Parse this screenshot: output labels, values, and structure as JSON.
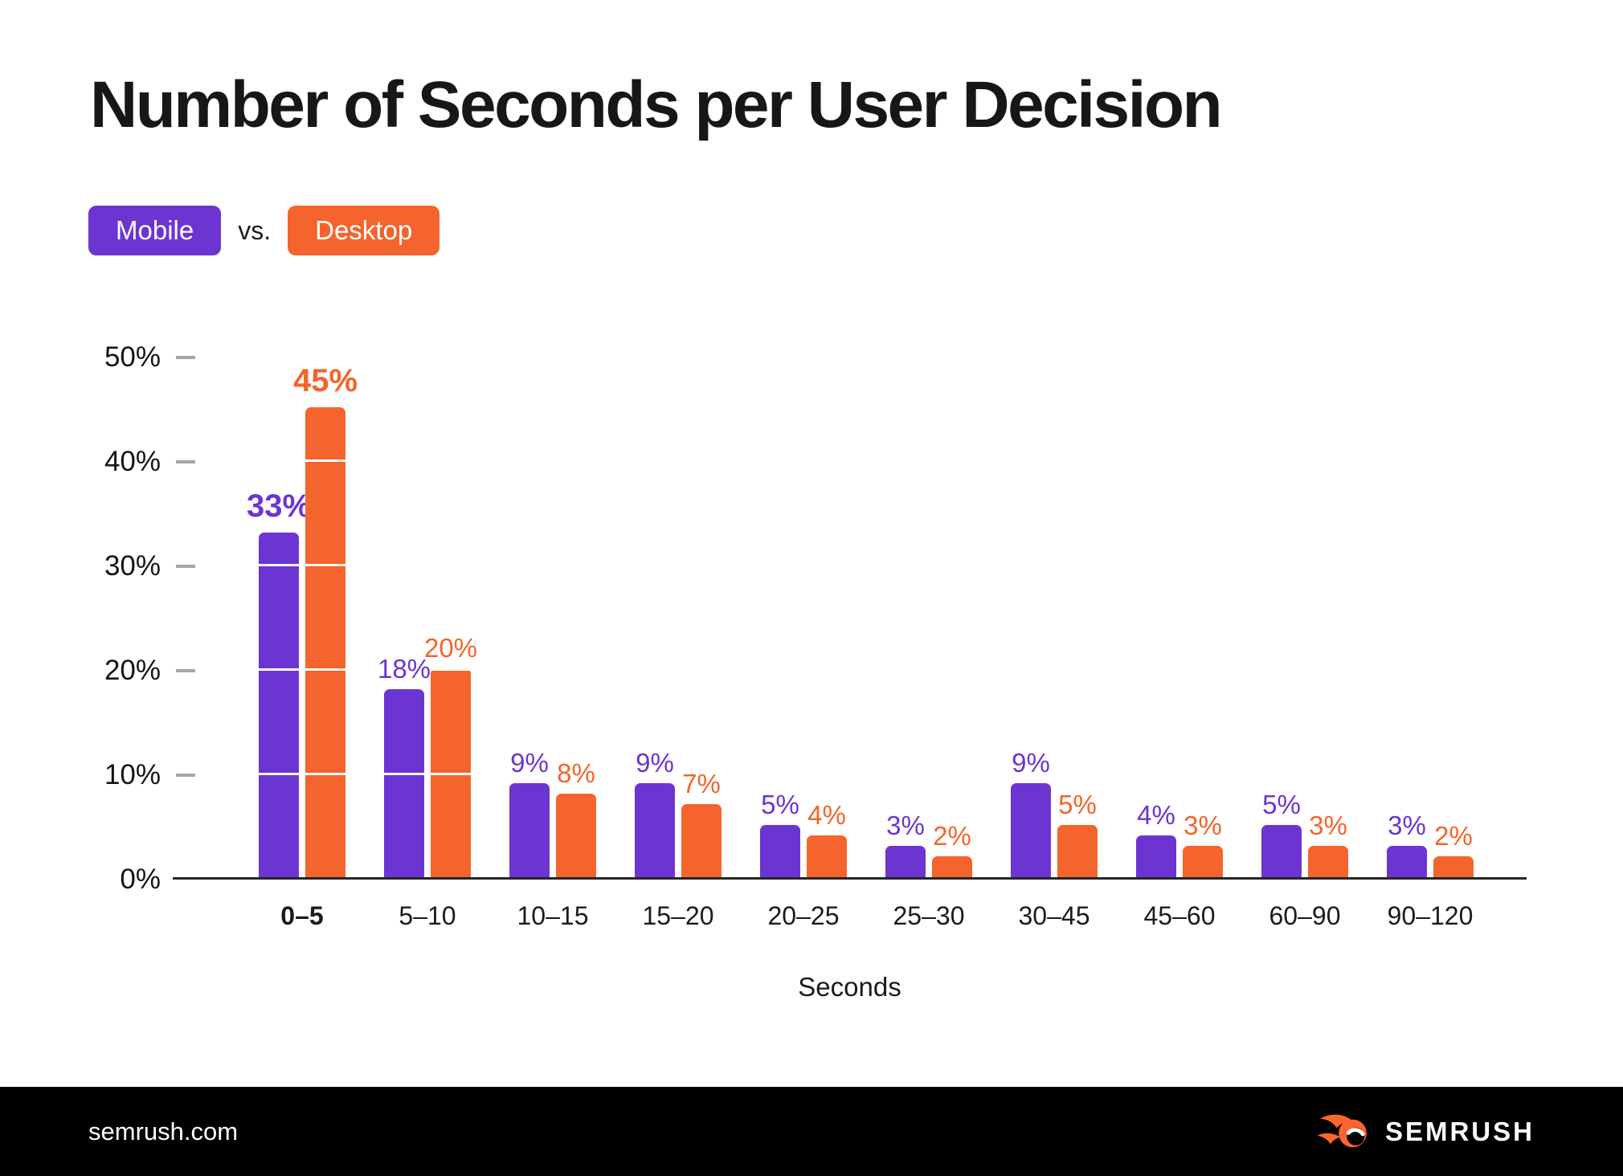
{
  "title": "Number of Seconds per User Decision",
  "legend": {
    "mobile_label": "Mobile",
    "vs_label": "vs.",
    "desktop_label": "Desktop"
  },
  "colors": {
    "mobile": "#6C35D2",
    "desktop": "#F4642C",
    "logo_flame": "#FF642D",
    "footer_bg": "#000000",
    "axis": "#262626",
    "tick": "#A6A6A6",
    "grid_line_on_bars": "rgba(255,255,255,0.85)"
  },
  "chart_data": {
    "type": "bar",
    "title": "Number of Seconds per User Decision",
    "categories": [
      "0–5",
      "5–10",
      "10–15",
      "15–20",
      "20–25",
      "25–30",
      "30–45",
      "45–60",
      "60–90",
      "90–120"
    ],
    "series": [
      {
        "name": "Mobile",
        "color": "#6C35D2",
        "values": [
          33,
          18,
          9,
          9,
          5,
          3,
          9,
          4,
          5,
          3
        ]
      },
      {
        "name": "Desktop",
        "color": "#F4642C",
        "values": [
          45,
          20,
          8,
          7,
          4,
          2,
          5,
          3,
          3,
          2
        ]
      }
    ],
    "value_suffix": "%",
    "data_labels": true,
    "xlabel": "Seconds",
    "ylabel": "",
    "ylim": [
      0,
      50
    ],
    "y_ticks": [
      "0%",
      "10%",
      "20%",
      "30%",
      "40%",
      "50%"
    ],
    "grid": "white gridlines visible only inside bars",
    "legend_position": "top-left"
  },
  "x_axis_title": "Seconds",
  "footer": {
    "url": "semrush.com",
    "brand": "SEMRUSH"
  }
}
